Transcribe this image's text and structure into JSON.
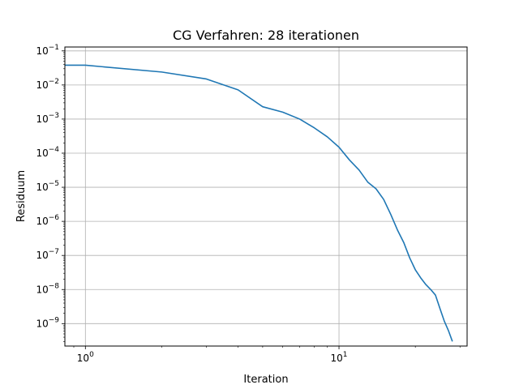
{
  "chart_data": {
    "type": "line",
    "title": "CG Verfahren: 28 iterationen",
    "xlabel": "Iteration",
    "ylabel": "Residuum",
    "xscale": "log",
    "yscale": "log",
    "xlim": [
      0.83,
      32
    ],
    "ylim": [
      2.2e-10,
      0.13
    ],
    "grid": "major",
    "color": "#1f77b4",
    "xticks": [
      {
        "value": 1,
        "base": "10",
        "exp": "0"
      },
      {
        "value": 10,
        "base": "10",
        "exp": "1"
      }
    ],
    "yticks": [
      {
        "value": 1e-09,
        "base": "10",
        "exp": "−9"
      },
      {
        "value": 1e-08,
        "base": "10",
        "exp": "−8"
      },
      {
        "value": 1e-07,
        "base": "10",
        "exp": "−7"
      },
      {
        "value": 1e-06,
        "base": "10",
        "exp": "−6"
      },
      {
        "value": 1e-05,
        "base": "10",
        "exp": "−5"
      },
      {
        "value": 0.0001,
        "base": "10",
        "exp": "−4"
      },
      {
        "value": 0.001,
        "base": "10",
        "exp": "−3"
      },
      {
        "value": 0.01,
        "base": "10",
        "exp": "−2"
      },
      {
        "value": 0.1,
        "base": "10",
        "exp": "−1"
      }
    ],
    "series": [
      {
        "x": [
          0.5,
          1,
          2,
          3,
          4,
          5,
          6,
          7,
          8,
          9,
          10,
          11,
          12,
          13,
          14,
          15,
          16,
          17,
          18,
          19,
          20,
          21,
          22,
          23,
          24,
          25,
          26,
          27,
          28
        ],
        "y": [
          0.038,
          0.038,
          0.024,
          0.015,
          0.0072,
          0.0023,
          0.0016,
          0.001,
          0.00055,
          0.0003,
          0.00015,
          6.3e-05,
          3.2e-05,
          1.4e-05,
          9e-06,
          4.4e-06,
          1.6e-06,
          5.6e-07,
          2.4e-07,
          8.5e-08,
          3.8e-08,
          2.2e-08,
          1.4e-08,
          1e-08,
          6.9e-09,
          2.8e-09,
          1.2e-09,
          6.3e-10,
          3e-10
        ]
      }
    ]
  }
}
